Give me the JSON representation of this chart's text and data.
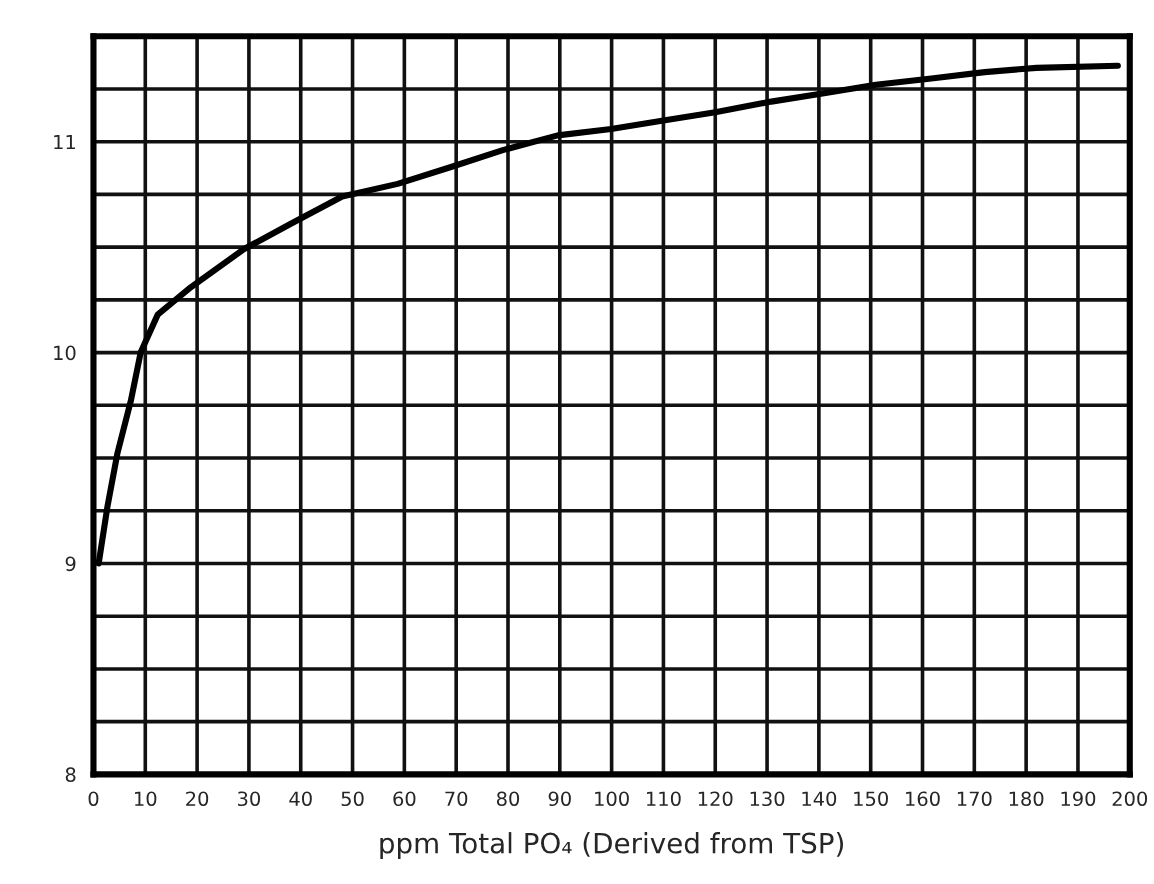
{
  "chart_data": {
    "type": "line",
    "xlabel": "ppm Total PO₄ (Derived from TSP)",
    "series": [
      {
        "color": "#000000",
        "x": [
          1,
          2.7,
          4.6,
          7.2,
          9.1,
          12.4,
          18.8,
          29,
          38,
          48,
          58.7,
          69,
          79,
          89.6,
          99.9,
          110,
          120,
          130.8,
          141,
          151,
          161.7,
          172,
          182,
          197.7
        ],
        "values": [
          9.0,
          9.27,
          9.52,
          9.77,
          10.0,
          10.18,
          10.31,
          10.49,
          10.61,
          10.74,
          10.8,
          10.88,
          10.96,
          11.03,
          11.06,
          11.1,
          11.14,
          11.19,
          11.23,
          11.27,
          11.3,
          11.33,
          11.35,
          11.36
        ]
      }
    ],
    "xlim": [
      0,
      200
    ],
    "xticks": [
      0,
      10,
      20,
      30,
      40,
      50,
      60,
      70,
      80,
      90,
      100,
      110,
      120,
      130,
      140,
      150,
      160,
      170,
      180,
      190,
      200
    ],
    "ylim": [
      8,
      11.5
    ],
    "yticks": [
      8,
      {
        "value": 8.25,
        "label": null
      },
      {
        "value": 8.5,
        "label": null
      },
      {
        "value": 8.75,
        "label": null
      },
      9,
      {
        "value": 9.25,
        "label": null
      },
      {
        "value": 9.5,
        "label": null
      },
      {
        "value": 9.75,
        "label": null
      },
      10,
      {
        "value": 10.25,
        "label": null
      },
      {
        "value": 10.5,
        "label": null
      },
      {
        "value": 10.75,
        "label": null
      },
      11,
      {
        "value": 11.25,
        "label": null
      },
      {
        "value": 11.5,
        "label": null
      }
    ],
    "grid": true,
    "marker": "none",
    "line_style": "solid"
  }
}
